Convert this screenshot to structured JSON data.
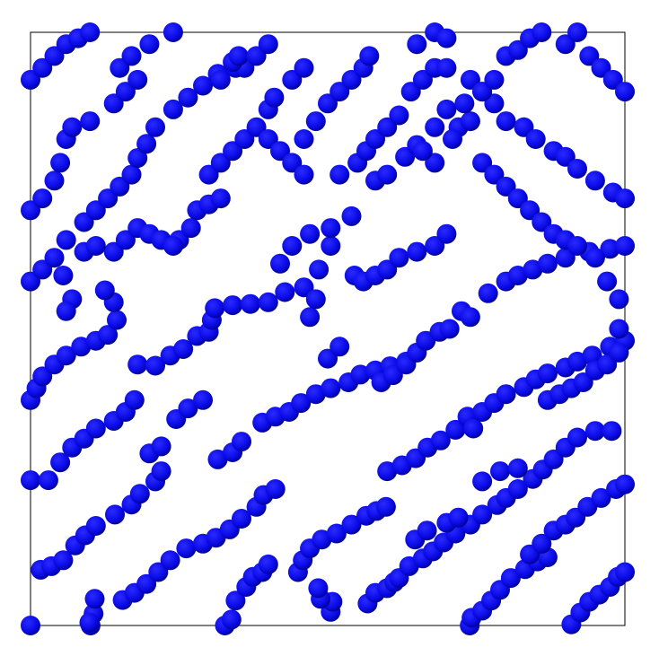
{
  "colors": {
    "background": "#ffffff",
    "box": "#000000",
    "particle": "#0a0ae6",
    "particle_shadow": "#00008a"
  },
  "particles": [
    [
      0.0,
      1.0
    ],
    [
      0.101,
      1.0
    ],
    [
      0.106,
      0.98
    ],
    [
      0.108,
      0.955
    ],
    [
      0.099,
      0.995
    ],
    [
      0.327,
      1.0
    ],
    [
      0.338,
      0.99
    ],
    [
      0.345,
      0.958
    ],
    [
      0.363,
      0.935
    ],
    [
      0.374,
      0.918
    ],
    [
      0.39,
      0.91
    ],
    [
      0.4,
      0.897
    ],
    [
      0.505,
      0.977
    ],
    [
      0.508,
      0.96
    ],
    [
      0.488,
      0.955
    ],
    [
      0.484,
      0.937
    ],
    [
      0.567,
      0.963
    ],
    [
      0.58,
      0.945
    ],
    [
      0.6,
      0.937
    ],
    [
      0.612,
      0.927
    ],
    [
      0.739,
      1.0
    ],
    [
      0.742,
      0.987
    ],
    [
      0.76,
      0.975
    ],
    [
      0.775,
      0.958
    ],
    [
      0.79,
      0.94
    ],
    [
      0.808,
      0.92
    ],
    [
      0.832,
      0.905
    ],
    [
      0.853,
      0.892
    ],
    [
      0.87,
      0.885
    ],
    [
      0.91,
      0.998
    ],
    [
      0.925,
      0.978
    ],
    [
      0.94,
      0.96
    ],
    [
      0.957,
      0.948
    ],
    [
      0.975,
      0.935
    ],
    [
      0.988,
      0.918
    ],
    [
      1.0,
      0.91
    ],
    [
      0.017,
      0.906
    ],
    [
      0.035,
      0.9
    ],
    [
      0.055,
      0.89
    ],
    [
      0.075,
      0.865
    ],
    [
      0.092,
      0.848
    ],
    [
      0.11,
      0.832
    ],
    [
      0.142,
      0.813
    ],
    [
      0.17,
      0.796
    ],
    [
      0.184,
      0.778
    ],
    [
      0.21,
      0.757
    ],
    [
      0.22,
      0.74
    ],
    [
      0.155,
      0.957
    ],
    [
      0.175,
      0.945
    ],
    [
      0.195,
      0.93
    ],
    [
      0.215,
      0.91
    ],
    [
      0.235,
      0.89
    ],
    [
      0.262,
      0.87
    ],
    [
      0.29,
      0.862
    ],
    [
      0.312,
      0.852
    ],
    [
      0.335,
      0.838
    ],
    [
      0.355,
      0.82
    ],
    [
      0.38,
      0.8
    ],
    [
      0.392,
      0.78
    ],
    [
      0.412,
      0.77
    ],
    [
      0.45,
      0.91
    ],
    [
      0.458,
      0.89
    ],
    [
      0.47,
      0.87
    ],
    [
      0.49,
      0.855
    ],
    [
      0.515,
      0.845
    ],
    [
      0.54,
      0.83
    ],
    [
      0.565,
      0.815
    ],
    [
      0.582,
      0.807
    ],
    [
      0.598,
      0.8
    ],
    [
      0.62,
      0.92
    ],
    [
      0.637,
      0.9
    ],
    [
      0.66,
      0.887
    ],
    [
      0.677,
      0.875
    ],
    [
      0.695,
      0.86
    ],
    [
      0.715,
      0.845
    ],
    [
      0.74,
      0.83
    ],
    [
      0.76,
      0.813
    ],
    [
      0.785,
      0.797
    ],
    [
      0.8,
      0.785
    ],
    [
      0.82,
      0.77
    ],
    [
      0.845,
      0.753
    ],
    [
      0.862,
      0.737
    ],
    [
      0.88,
      0.72
    ],
    [
      0.9,
      0.7
    ],
    [
      0.92,
      0.683
    ],
    [
      0.95,
      0.672
    ],
    [
      0.978,
      0.672
    ],
    [
      0.647,
      0.855
    ],
    [
      0.667,
      0.84
    ],
    [
      0.7,
      0.827
    ],
    [
      0.72,
      0.818
    ],
    [
      0.76,
      0.757
    ],
    [
      0.79,
      0.74
    ],
    [
      0.82,
      0.735
    ],
    [
      0.84,
      0.88
    ],
    [
      0.86,
      0.862
    ],
    [
      0.88,
      0.84
    ],
    [
      0.9,
      0.83
    ],
    [
      0.917,
      0.818
    ],
    [
      0.937,
      0.8
    ],
    [
      0.96,
      0.785
    ],
    [
      0.985,
      0.77
    ],
    [
      1.0,
      0.762
    ],
    [
      0.0,
      0.755
    ],
    [
      0.03,
      0.755
    ],
    [
      0.05,
      0.725
    ],
    [
      0.07,
      0.7
    ],
    [
      0.09,
      0.685
    ],
    [
      0.11,
      0.668
    ],
    [
      0.14,
      0.655
    ],
    [
      0.16,
      0.64
    ],
    [
      0.175,
      0.62
    ],
    [
      0.2,
      0.71
    ],
    [
      0.22,
      0.698
    ],
    [
      0.245,
      0.652
    ],
    [
      0.265,
      0.634
    ],
    [
      0.29,
      0.62
    ],
    [
      0.315,
      0.72
    ],
    [
      0.34,
      0.708
    ],
    [
      0.355,
      0.69
    ],
    [
      0.39,
      0.658
    ],
    [
      0.412,
      0.648
    ],
    [
      0.435,
      0.64
    ],
    [
      0.455,
      0.625
    ],
    [
      0.48,
      0.61
    ],
    [
      0.505,
      0.6
    ],
    [
      0.535,
      0.59
    ],
    [
      0.555,
      0.577
    ],
    [
      0.58,
      0.57
    ],
    [
      0.605,
      0.563
    ],
    [
      0.632,
      0.555
    ],
    [
      0.6,
      0.74
    ],
    [
      0.625,
      0.73
    ],
    [
      0.648,
      0.718
    ],
    [
      0.668,
      0.7
    ],
    [
      0.69,
      0.688
    ],
    [
      0.715,
      0.67
    ],
    [
      0.735,
      0.648
    ],
    [
      0.745,
      0.668
    ],
    [
      0.76,
      0.64
    ],
    [
      0.78,
      0.625
    ],
    [
      0.8,
      0.61
    ],
    [
      0.83,
      0.598
    ],
    [
      0.85,
      0.585
    ],
    [
      0.87,
      0.575
    ],
    [
      0.9,
      0.565
    ],
    [
      0.92,
      0.555
    ],
    [
      0.945,
      0.545
    ],
    [
      0.975,
      0.53
    ],
    [
      1.0,
      0.52
    ],
    [
      0.0,
      0.62
    ],
    [
      0.01,
      0.6
    ],
    [
      0.02,
      0.58
    ],
    [
      0.04,
      0.56
    ],
    [
      0.06,
      0.545
    ],
    [
      0.085,
      0.53
    ],
    [
      0.11,
      0.52
    ],
    [
      0.13,
      0.51
    ],
    [
      0.145,
      0.485
    ],
    [
      0.14,
      0.455
    ],
    [
      0.125,
      0.435
    ],
    [
      0.18,
      0.56
    ],
    [
      0.21,
      0.562
    ],
    [
      0.235,
      0.545
    ],
    [
      0.257,
      0.534
    ],
    [
      0.28,
      0.512
    ],
    [
      0.3,
      0.505
    ],
    [
      0.305,
      0.485
    ],
    [
      0.31,
      0.465
    ],
    [
      0.34,
      0.46
    ],
    [
      0.37,
      0.458
    ],
    [
      0.4,
      0.455
    ],
    [
      0.428,
      0.438
    ],
    [
      0.46,
      0.43
    ],
    [
      0.485,
      0.4
    ],
    [
      0.505,
      0.36
    ],
    [
      0.42,
      0.39
    ],
    [
      0.44,
      0.36
    ],
    [
      0.47,
      0.34
    ],
    [
      0.505,
      0.33
    ],
    [
      0.54,
      0.31
    ],
    [
      0.59,
      0.59
    ],
    [
      0.61,
      0.578
    ],
    [
      0.632,
      0.56
    ],
    [
      0.65,
      0.54
    ],
    [
      0.665,
      0.52
    ],
    [
      0.688,
      0.505
    ],
    [
      0.705,
      0.5
    ],
    [
      0.725,
      0.47
    ],
    [
      0.74,
      0.48
    ],
    [
      0.77,
      0.44
    ],
    [
      0.8,
      0.42
    ],
    [
      0.82,
      0.41
    ],
    [
      0.845,
      0.4
    ],
    [
      0.87,
      0.39
    ],
    [
      0.9,
      0.38
    ],
    [
      0.94,
      0.37
    ],
    [
      0.975,
      0.365
    ],
    [
      1.0,
      0.36
    ],
    [
      0.87,
      0.62
    ],
    [
      0.89,
      0.61
    ],
    [
      0.91,
      0.6
    ],
    [
      0.93,
      0.59
    ],
    [
      0.95,
      0.57
    ],
    [
      0.97,
      0.56
    ],
    [
      0.99,
      0.54
    ],
    [
      0.99,
      0.5
    ],
    [
      0.0,
      0.42
    ],
    [
      0.02,
      0.4
    ],
    [
      0.04,
      0.38
    ],
    [
      0.06,
      0.35
    ],
    [
      0.055,
      0.41
    ],
    [
      0.09,
      0.32
    ],
    [
      0.11,
      0.3
    ],
    [
      0.13,
      0.28
    ],
    [
      0.15,
      0.26
    ],
    [
      0.17,
      0.24
    ],
    [
      0.18,
      0.212
    ],
    [
      0.195,
      0.188
    ],
    [
      0.21,
      0.16
    ],
    [
      0.24,
      0.13
    ],
    [
      0.265,
      0.11
    ],
    [
      0.29,
      0.09
    ],
    [
      0.315,
      0.07
    ],
    [
      0.345,
      0.06
    ],
    [
      0.36,
      0.06
    ],
    [
      0.4,
      0.13
    ],
    [
      0.41,
      0.11
    ],
    [
      0.44,
      0.08
    ],
    [
      0.46,
      0.06
    ],
    [
      0.52,
      0.24
    ],
    [
      0.55,
      0.22
    ],
    [
      0.565,
      0.2
    ],
    [
      0.58,
      0.18
    ],
    [
      0.6,
      0.16
    ],
    [
      0.62,
      0.14
    ],
    [
      0.64,
      0.1
    ],
    [
      0.66,
      0.08
    ],
    [
      0.68,
      0.06
    ],
    [
      0.7,
      0.06
    ],
    [
      0.74,
      0.08
    ],
    [
      0.76,
      0.1
    ],
    [
      0.78,
      0.12
    ],
    [
      0.8,
      0.15
    ],
    [
      0.83,
      0.16
    ],
    [
      0.85,
      0.18
    ],
    [
      0.88,
      0.2
    ],
    [
      0.9,
      0.21
    ],
    [
      0.92,
      0.23
    ],
    [
      0.95,
      0.25
    ],
    [
      0.98,
      0.27
    ],
    [
      1.0,
      0.28
    ],
    [
      0.0,
      0.3
    ],
    [
      0.02,
      0.28
    ],
    [
      0.04,
      0.25
    ],
    [
      0.05,
      0.22
    ],
    [
      0.06,
      0.18
    ],
    [
      0.07,
      0.16
    ],
    [
      0.1,
      0.15
    ],
    [
      0.14,
      0.12
    ],
    [
      0.16,
      0.1
    ],
    [
      0.18,
      0.08
    ],
    [
      0.15,
      0.06
    ],
    [
      0.0,
      0.08
    ],
    [
      0.02,
      0.06
    ],
    [
      0.04,
      0.04
    ],
    [
      0.06,
      0.02
    ],
    [
      0.08,
      0.01
    ],
    [
      0.1,
      0.0
    ],
    [
      0.17,
      0.04
    ],
    [
      0.2,
      0.02
    ],
    [
      0.24,
      0.0
    ],
    [
      0.32,
      0.08
    ],
    [
      0.34,
      0.05
    ],
    [
      0.35,
      0.04
    ],
    [
      0.38,
      0.04
    ],
    [
      0.4,
      0.02
    ],
    [
      0.46,
      0.18
    ],
    [
      0.48,
      0.15
    ],
    [
      0.5,
      0.12
    ],
    [
      0.52,
      0.1
    ],
    [
      0.54,
      0.08
    ],
    [
      0.56,
      0.06
    ],
    [
      0.57,
      0.04
    ],
    [
      0.65,
      0.02
    ],
    [
      0.68,
      0.0
    ],
    [
      0.7,
      0.01
    ],
    [
      0.72,
      0.16
    ],
    [
      0.74,
      0.15
    ],
    [
      0.76,
      0.1
    ],
    [
      0.78,
      0.08
    ],
    [
      0.8,
      0.04
    ],
    [
      0.82,
      0.03
    ],
    [
      0.84,
      0.01
    ],
    [
      0.86,
      0.0
    ],
    [
      0.9,
      0.02
    ],
    [
      0.92,
      0.0
    ],
    [
      0.94,
      0.04
    ],
    [
      0.96,
      0.06
    ],
    [
      0.98,
      0.08
    ],
    [
      1.0,
      0.1
    ],
    [
      0.76,
      0.22
    ],
    [
      0.78,
      0.24
    ],
    [
      0.8,
      0.26
    ],
    [
      0.82,
      0.28
    ],
    [
      0.84,
      0.3
    ],
    [
      0.86,
      0.32
    ],
    [
      0.88,
      0.34
    ],
    [
      0.9,
      0.35
    ],
    [
      0.92,
      0.36
    ],
    [
      0.95,
      0.38
    ],
    [
      0.97,
      0.42
    ],
    [
      0.99,
      0.45
    ],
    [
      0.3,
      0.24
    ],
    [
      0.32,
      0.22
    ],
    [
      0.34,
      0.2
    ],
    [
      0.36,
      0.18
    ],
    [
      0.38,
      0.16
    ],
    [
      0.4,
      0.18
    ],
    [
      0.42,
      0.2
    ],
    [
      0.44,
      0.22
    ],
    [
      0.46,
      0.24
    ],
    [
      0.25,
      0.35
    ],
    [
      0.27,
      0.33
    ],
    [
      0.28,
      0.3
    ],
    [
      0.3,
      0.29
    ],
    [
      0.32,
      0.28
    ],
    [
      0.14,
      0.37
    ],
    [
      0.16,
      0.35
    ],
    [
      0.18,
      0.33
    ],
    [
      0.2,
      0.34
    ],
    [
      0.22,
      0.35
    ],
    [
      0.24,
      0.36
    ],
    [
      0.09,
      0.37
    ],
    [
      0.11,
      0.36
    ],
    [
      0.07,
      0.45
    ],
    [
      0.06,
      0.47
    ],
    [
      0.5,
      0.55
    ],
    [
      0.52,
      0.53
    ],
    [
      0.47,
      0.48
    ],
    [
      0.48,
      0.45
    ],
    [
      0.545,
      0.41
    ],
    [
      0.56,
      0.42
    ],
    [
      0.58,
      0.41
    ],
    [
      0.6,
      0.4
    ],
    [
      0.62,
      0.38
    ],
    [
      0.65,
      0.37
    ],
    [
      0.68,
      0.36
    ],
    [
      0.7,
      0.34
    ],
    [
      0.58,
      0.25
    ],
    [
      0.6,
      0.24
    ],
    [
      0.63,
      0.21
    ],
    [
      0.65,
      0.19
    ],
    [
      0.68,
      0.16
    ],
    [
      0.7,
      0.13
    ],
    [
      0.73,
      0.12
    ],
    [
      0.71,
      0.18
    ],
    [
      0.68,
      0.22
    ],
    [
      0.66,
      0.2
    ]
  ]
}
